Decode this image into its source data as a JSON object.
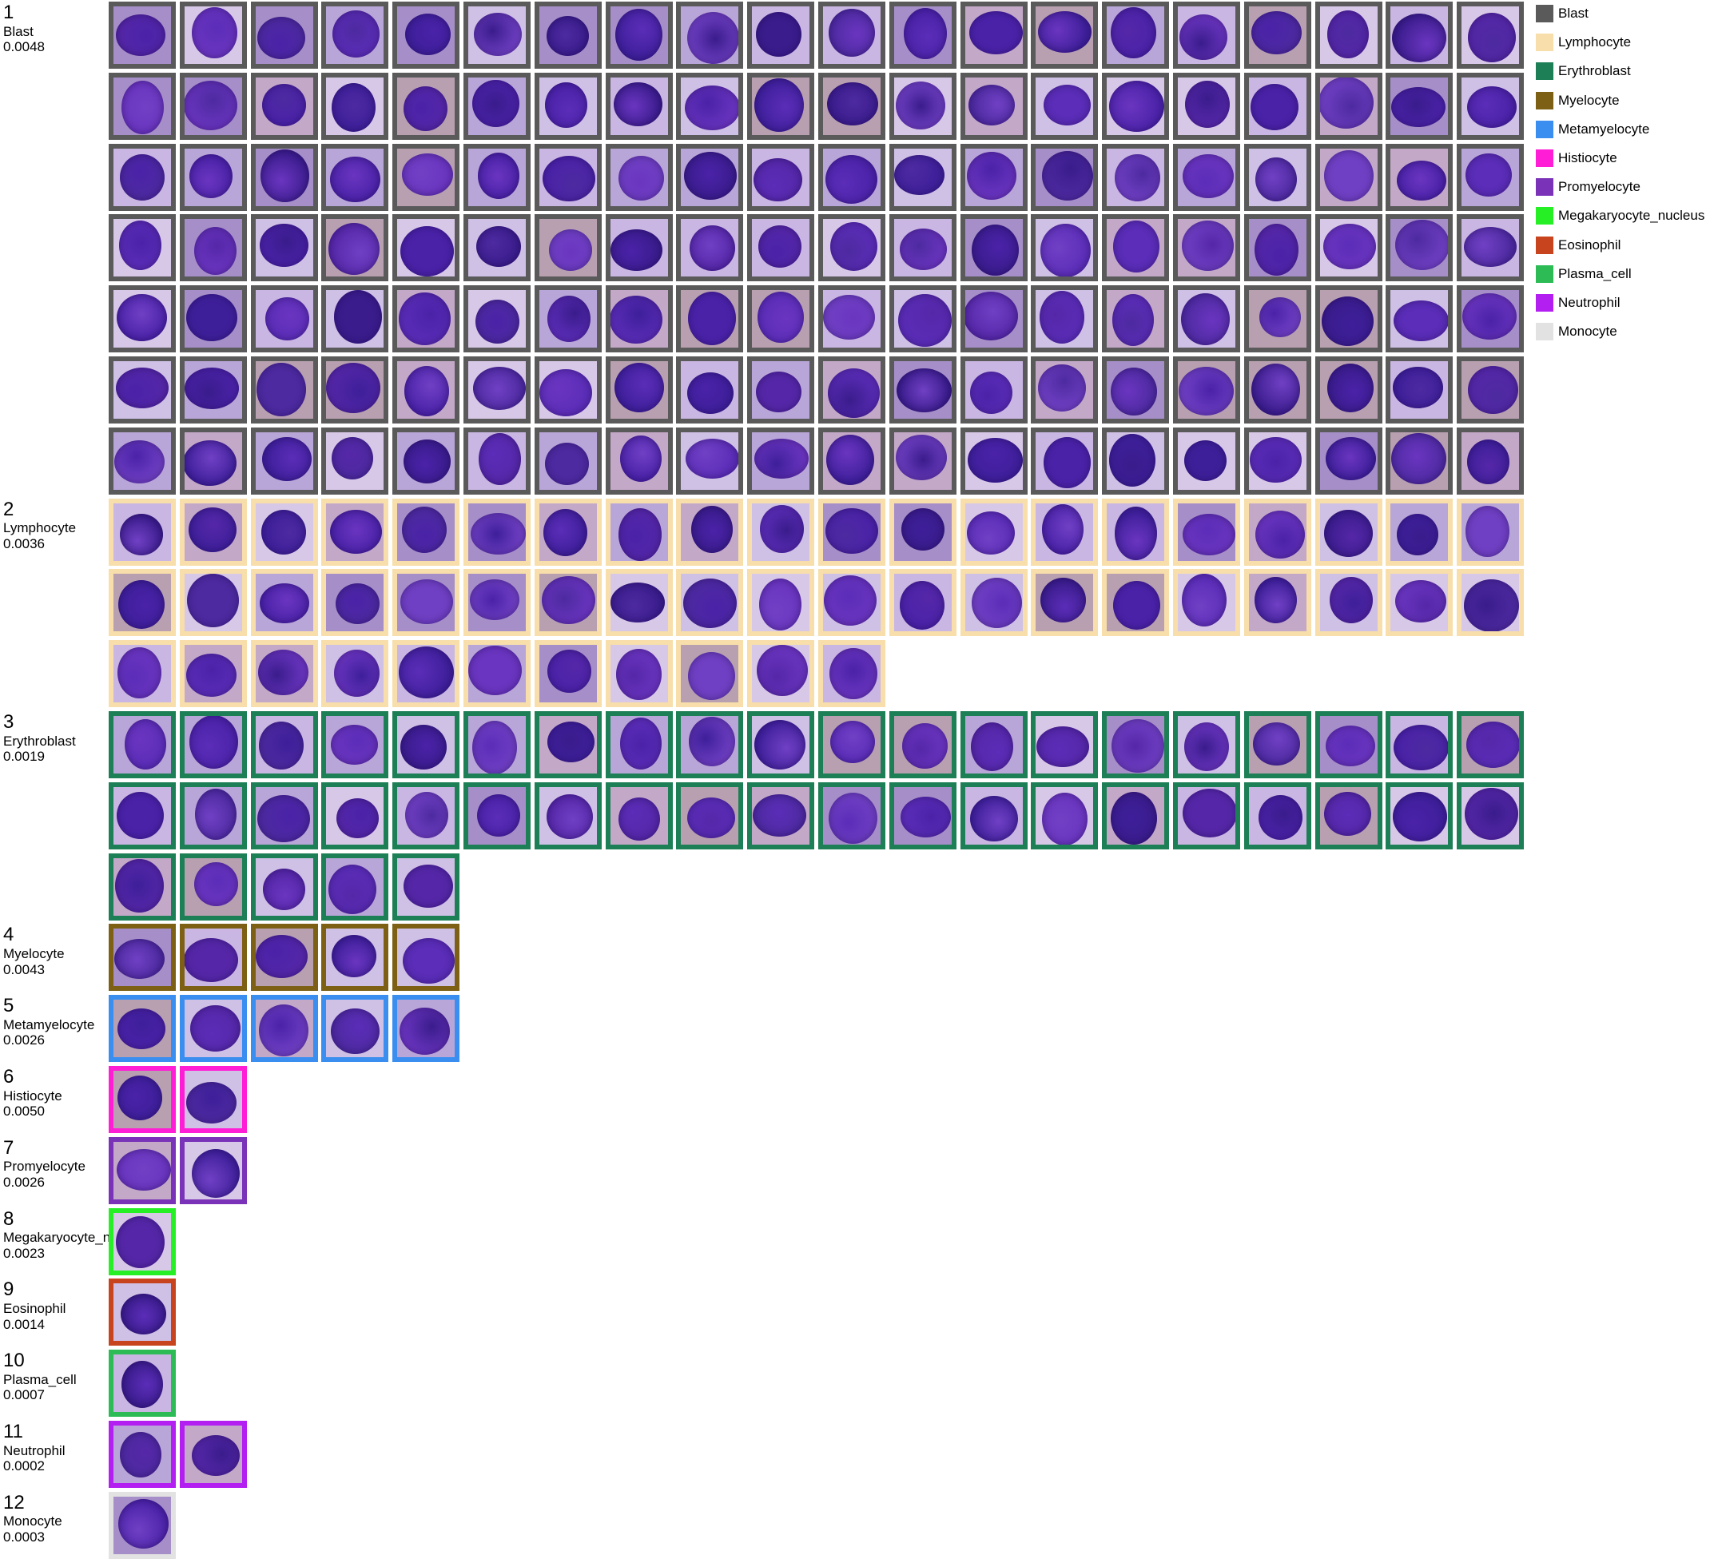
{
  "groups": [
    {
      "index": "1",
      "name": "Blast",
      "score": "0.0048",
      "color": "#5a5a5a",
      "count": 140
    },
    {
      "index": "2",
      "name": "Lymphocyte",
      "score": "0.0036",
      "color": "#f7deaa",
      "count": 51
    },
    {
      "index": "3",
      "name": "Erythroblast",
      "score": "0.0019",
      "color": "#1d7f55",
      "count": 45
    },
    {
      "index": "4",
      "name": "Myelocyte",
      "score": "0.0043",
      "color": "#7d6013",
      "count": 5
    },
    {
      "index": "5",
      "name": "Metamyelocyte",
      "score": "0.0026",
      "color": "#3a8ef0",
      "count": 5
    },
    {
      "index": "6",
      "name": "Histiocyte",
      "score": "0.0050",
      "color": "#ff1dd6",
      "count": 2
    },
    {
      "index": "7",
      "name": "Promyelocyte",
      "score": "0.0026",
      "color": "#7a33b8",
      "count": 2
    },
    {
      "index": "8",
      "name": "Megakaryocyte_nucleus",
      "score": "0.0023",
      "color": "#26ef26",
      "count": 1
    },
    {
      "index": "9",
      "name": "Eosinophil",
      "score": "0.0014",
      "color": "#c8441e",
      "count": 1
    },
    {
      "index": "10",
      "name": "Plasma_cell",
      "score": "0.0007",
      "color": "#2cbb55",
      "count": 1
    },
    {
      "index": "11",
      "name": "Neutrophil",
      "score": "0.0002",
      "color": "#b21ff0",
      "count": 2
    },
    {
      "index": "12",
      "name": "Monocyte",
      "score": "0.0003",
      "color": "#e2e2e2",
      "count": 1
    }
  ],
  "legend": [
    {
      "label": "Blast",
      "color": "#5a5a5a"
    },
    {
      "label": "Lymphocyte",
      "color": "#f7deaa"
    },
    {
      "label": "Erythroblast",
      "color": "#1d7f55"
    },
    {
      "label": "Myelocyte",
      "color": "#7d6013"
    },
    {
      "label": "Metamyelocyte",
      "color": "#3a8ef0"
    },
    {
      "label": "Histiocyte",
      "color": "#ff1dd6"
    },
    {
      "label": "Promyelocyte",
      "color": "#7a33b8"
    },
    {
      "label": "Megakaryocyte_nucleus",
      "color": "#26ef26"
    },
    {
      "label": "Eosinophil",
      "color": "#c8441e"
    },
    {
      "label": "Plasma_cell",
      "color": "#2cbb55"
    },
    {
      "label": "Neutrophil",
      "color": "#b21ff0"
    },
    {
      "label": "Monocyte",
      "color": "#e2e2e2"
    }
  ]
}
